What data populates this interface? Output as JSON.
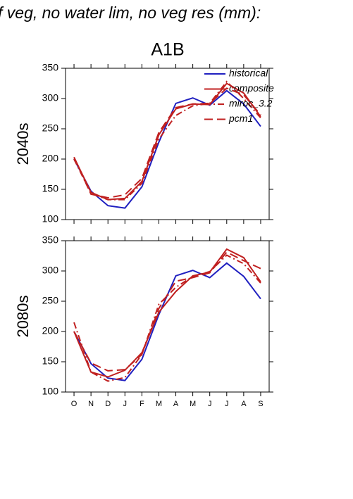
{
  "chart_data": [
    {
      "type": "line",
      "title": "f veg, no water lim, no veg res (mm):",
      "subtitle": "A1B",
      "ylabel": "2040s",
      "ylim": [
        100,
        350
      ],
      "yticks": [
        100,
        150,
        200,
        250,
        300,
        350
      ],
      "legend": "upper right",
      "series": [
        {
          "name": "historical",
          "color": "#2020c0",
          "linestyle": "solid",
          "values": [
            200,
            147,
            123,
            119,
            154,
            228,
            292,
            301,
            289,
            313,
            291,
            254
          ]
        },
        {
          "name": "composite",
          "color": "#c02020",
          "linestyle": "solid",
          "values": [
            203,
            145,
            133,
            135,
            163,
            240,
            283,
            291,
            290,
            325,
            309,
            270
          ]
        },
        {
          "name": "miroc_3.2",
          "color": "#c02020",
          "linestyle": "dashdot",
          "values": [
            200,
            143,
            133,
            133,
            160,
            233,
            272,
            288,
            292,
            328,
            300,
            268
          ]
        },
        {
          "name": "pcm1",
          "color": "#c02020",
          "linestyle": "dashed",
          "values": [
            203,
            142,
            136,
            141,
            168,
            244,
            285,
            291,
            292,
            317,
            306,
            273
          ]
        }
      ]
    },
    {
      "type": "line",
      "ylabel": "2080s",
      "categories": [
        "O",
        "N",
        "D",
        "J",
        "F",
        "M",
        "A",
        "M",
        "J",
        "J",
        "A",
        "S"
      ],
      "ylim": [
        100,
        350
      ],
      "yticks": [
        100,
        150,
        200,
        250,
        300,
        350
      ],
      "series": [
        {
          "color": "#2020c0",
          "linestyle": "solid",
          "values": [
            200,
            147,
            123,
            119,
            154,
            228,
            292,
            301,
            289,
            313,
            291,
            254
          ]
        },
        {
          "color": "#c02020",
          "linestyle": "solid",
          "values": [
            200,
            133,
            125,
            136,
            165,
            232,
            266,
            292,
            298,
            336,
            322,
            282
          ]
        },
        {
          "color": "#c02020",
          "linestyle": "dashdot",
          "values": [
            215,
            133,
            118,
            124,
            162,
            245,
            273,
            291,
            299,
            326,
            312,
            280
          ]
        },
        {
          "color": "#c02020",
          "linestyle": "dashed",
          "values": [
            200,
            148,
            135,
            137,
            162,
            238,
            283,
            289,
            297,
            331,
            317,
            304
          ]
        }
      ]
    }
  ]
}
